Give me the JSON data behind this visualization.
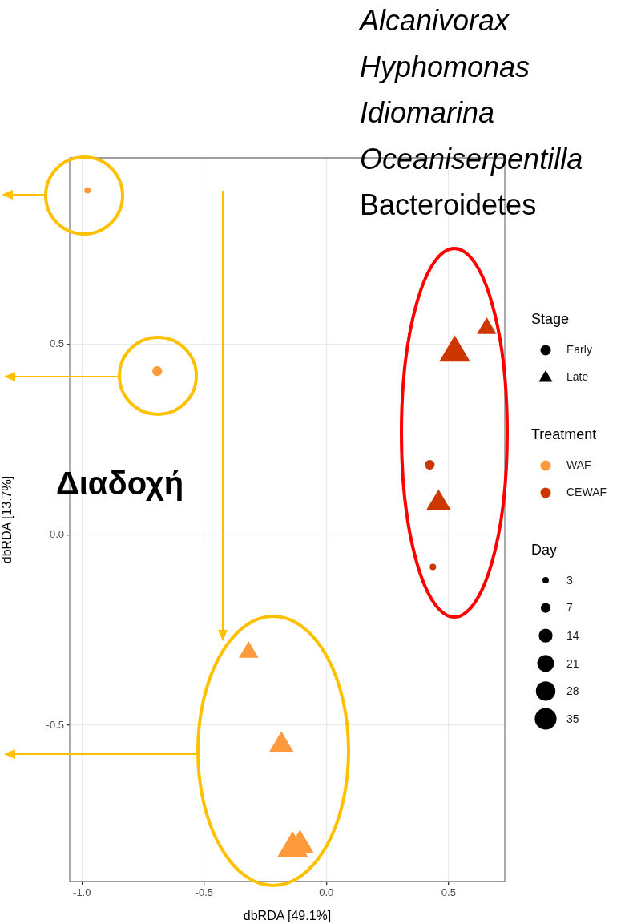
{
  "chart_data": {
    "type": "scatter",
    "xlabel": "dbRDA [49.1%]",
    "ylabel": "dbRDA [13.7%]",
    "xlim": [
      -1.05,
      0.73
    ],
    "xticks": [
      {
        "value": -1,
        "label": "-1.0"
      },
      -0.5,
      {
        "value": 0,
        "label": "0.0"
      },
      0.5
    ],
    "ylim": [
      -0.91,
      0.99
    ],
    "yticks": [
      -0.5,
      {
        "value": 0,
        "label": "0.0"
      },
      0.5
    ],
    "grid": true,
    "legend": "right",
    "legend_title": [
      "Stage",
      "Treatment",
      "Day"
    ],
    "size_legend": [
      3,
      7,
      14,
      21,
      28,
      35
    ],
    "series": [
      {
        "color": "#fe9a3b",
        "marker": "circle",
        "x": [
          -0.977,
          -0.692
        ],
        "values": [
          0.905,
          0.43
        ],
        "sizes": [
          3,
          7
        ]
      },
      {
        "color": "#fe9a3b",
        "marker": "triangle",
        "x": [
          -0.318,
          -0.184,
          -0.138,
          -0.108
        ],
        "values": [
          -0.306,
          -0.549,
          -0.821,
          -0.812
        ],
        "sizes": [
          14,
          21,
          35,
          28
        ]
      },
      {
        "color": "#cc3700",
        "marker": "circle",
        "x": [
          0.423,
          0.436
        ],
        "values": [
          0.184,
          -0.084
        ],
        "sizes": [
          7,
          3
        ]
      },
      {
        "color": "#cc3700",
        "marker": "triangle",
        "x": [
          0.656,
          0.525,
          0.459
        ],
        "values": [
          0.544,
          0.481,
          0.086
        ],
        "sizes": [
          14,
          35,
          21
        ]
      },
      {
        "name": "Early",
        "color": "#000000",
        "marker": "circle"
      },
      {
        "name": "Late",
        "color": "#000000",
        "marker": "triangle"
      },
      {
        "name": "WAF",
        "color": "#fe9a3b",
        "marker": "circle"
      },
      {
        "name": "CEWAF",
        "color": "#cc3700",
        "marker": "circle"
      }
    ],
    "annotations": [
      "Alcanivorax",
      "Hyphomonas",
      "Idiomarina",
      "Oceaniserpentilla",
      "Bacteroidetes",
      "Διαδοχή"
    ]
  }
}
